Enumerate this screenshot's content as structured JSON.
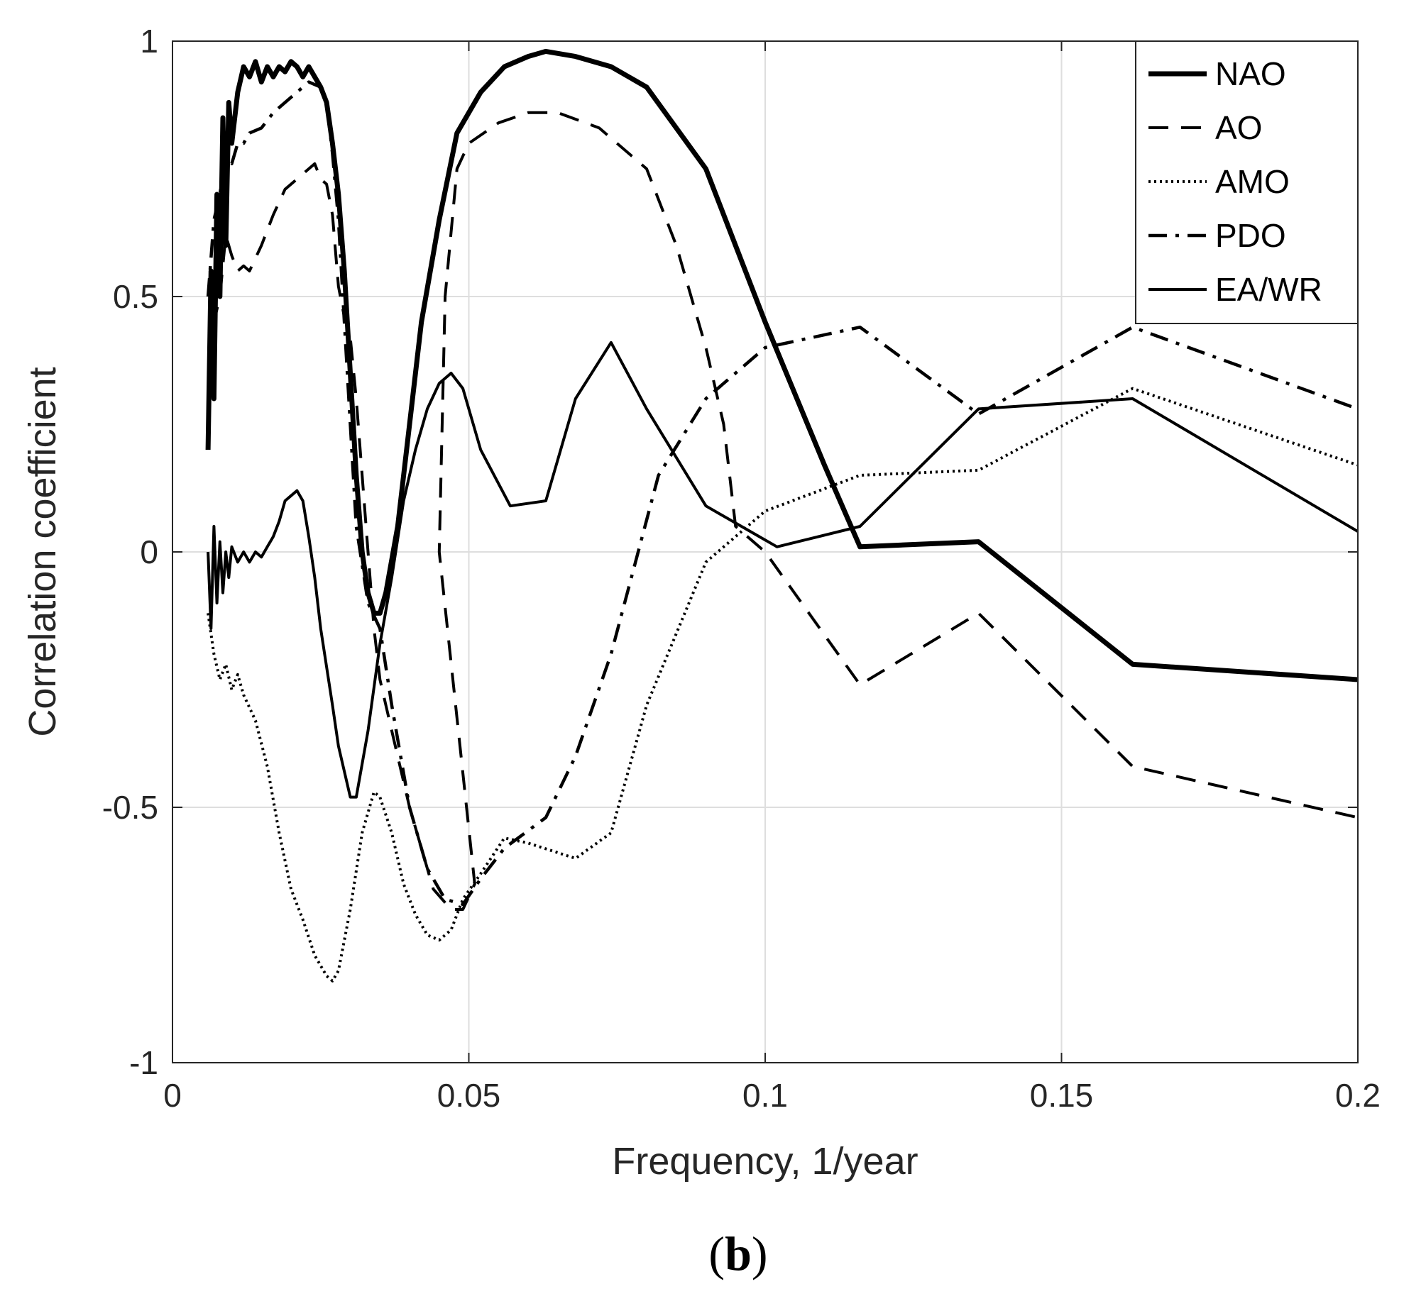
{
  "chart_data": {
    "type": "line",
    "title": "",
    "xlabel": "Frequency, 1/year",
    "ylabel": "Correlation coefficient",
    "panel_label_open": "(",
    "panel_label_letter": "b",
    "panel_label_close": ")",
    "xlim": [
      0,
      0.2
    ],
    "ylim": [
      -1,
      1
    ],
    "grid": true,
    "legend_position": "top-right",
    "xticks": [
      0,
      0.05,
      0.1,
      0.15,
      0.2
    ],
    "xtick_labels": [
      "0",
      "0.05",
      "0.1",
      "0.15",
      "0.2"
    ],
    "yticks": [
      -1,
      -0.5,
      0,
      0.5,
      1
    ],
    "ytick_labels": [
      "-1",
      "-0.5",
      "0",
      "0.5",
      "1"
    ],
    "series": [
      {
        "name": "NAO",
        "style": "solid-thick",
        "color": "#000000",
        "points": [
          [
            0.006,
            0.2
          ],
          [
            0.0065,
            0.55
          ],
          [
            0.007,
            0.3
          ],
          [
            0.0075,
            0.7
          ],
          [
            0.008,
            0.5
          ],
          [
            0.0085,
            0.85
          ],
          [
            0.009,
            0.6
          ],
          [
            0.0095,
            0.88
          ],
          [
            0.01,
            0.8
          ],
          [
            0.011,
            0.9
          ],
          [
            0.012,
            0.95
          ],
          [
            0.013,
            0.93
          ],
          [
            0.014,
            0.96
          ],
          [
            0.015,
            0.92
          ],
          [
            0.016,
            0.95
          ],
          [
            0.017,
            0.93
          ],
          [
            0.018,
            0.95
          ],
          [
            0.019,
            0.94
          ],
          [
            0.02,
            0.96
          ],
          [
            0.021,
            0.95
          ],
          [
            0.022,
            0.93
          ],
          [
            0.023,
            0.95
          ],
          [
            0.024,
            0.93
          ],
          [
            0.025,
            0.91
          ],
          [
            0.026,
            0.88
          ],
          [
            0.027,
            0.8
          ],
          [
            0.028,
            0.7
          ],
          [
            0.029,
            0.55
          ],
          [
            0.03,
            0.35
          ],
          [
            0.031,
            0.15
          ],
          [
            0.032,
            0.0
          ],
          [
            0.033,
            -0.08
          ],
          [
            0.034,
            -0.12
          ],
          [
            0.035,
            -0.12
          ],
          [
            0.036,
            -0.08
          ],
          [
            0.038,
            0.05
          ],
          [
            0.04,
            0.25
          ],
          [
            0.042,
            0.45
          ],
          [
            0.045,
            0.65
          ],
          [
            0.048,
            0.82
          ],
          [
            0.052,
            0.9
          ],
          [
            0.056,
            0.95
          ],
          [
            0.06,
            0.97
          ],
          [
            0.063,
            0.98
          ],
          [
            0.068,
            0.97
          ],
          [
            0.074,
            0.95
          ],
          [
            0.08,
            0.91
          ],
          [
            0.09,
            0.75
          ],
          [
            0.1,
            0.45
          ],
          [
            0.11,
            0.17
          ],
          [
            0.116,
            0.01
          ],
          [
            0.136,
            0.02
          ],
          [
            0.162,
            -0.22
          ],
          [
            0.2,
            -0.25
          ]
        ]
      },
      {
        "name": "AO",
        "style": "dashed",
        "color": "#000000",
        "points": [
          [
            0.006,
            0.25
          ],
          [
            0.007,
            0.45
          ],
          [
            0.008,
            0.5
          ],
          [
            0.009,
            0.62
          ],
          [
            0.01,
            0.58
          ],
          [
            0.011,
            0.55
          ],
          [
            0.012,
            0.56
          ],
          [
            0.013,
            0.55
          ],
          [
            0.015,
            0.6
          ],
          [
            0.017,
            0.66
          ],
          [
            0.019,
            0.71
          ],
          [
            0.021,
            0.73
          ],
          [
            0.023,
            0.75
          ],
          [
            0.024,
            0.76
          ],
          [
            0.025,
            0.73
          ],
          [
            0.026,
            0.72
          ],
          [
            0.027,
            0.66
          ],
          [
            0.028,
            0.52
          ],
          [
            0.029,
            0.46
          ],
          [
            0.03,
            0.42
          ],
          [
            0.031,
            0.3
          ],
          [
            0.032,
            0.15
          ],
          [
            0.033,
            0.0
          ],
          [
            0.034,
            -0.15
          ],
          [
            0.035,
            -0.25
          ],
          [
            0.037,
            -0.35
          ],
          [
            0.04,
            -0.5
          ],
          [
            0.044,
            -0.66
          ],
          [
            0.047,
            -0.7
          ],
          [
            0.049,
            -0.7
          ],
          [
            0.051,
            -0.65
          ],
          [
            0.045,
            0.0
          ],
          [
            0.046,
            0.5
          ],
          [
            0.048,
            0.75
          ],
          [
            0.05,
            0.8
          ],
          [
            0.055,
            0.84
          ],
          [
            0.06,
            0.86
          ],
          [
            0.065,
            0.86
          ],
          [
            0.072,
            0.83
          ],
          [
            0.08,
            0.75
          ],
          [
            0.085,
            0.6
          ],
          [
            0.09,
            0.4
          ],
          [
            0.093,
            0.25
          ],
          [
            0.095,
            0.05
          ],
          [
            0.1,
            0.0
          ],
          [
            0.116,
            -0.26
          ],
          [
            0.136,
            -0.12
          ],
          [
            0.162,
            -0.42
          ],
          [
            0.2,
            -0.52
          ]
        ]
      },
      {
        "name": "AMO",
        "style": "dotted",
        "color": "#000000",
        "points": [
          [
            0.006,
            -0.12
          ],
          [
            0.007,
            -0.2
          ],
          [
            0.008,
            -0.25
          ],
          [
            0.009,
            -0.22
          ],
          [
            0.01,
            -0.27
          ],
          [
            0.011,
            -0.24
          ],
          [
            0.012,
            -0.28
          ],
          [
            0.014,
            -0.33
          ],
          [
            0.016,
            -0.42
          ],
          [
            0.018,
            -0.55
          ],
          [
            0.02,
            -0.66
          ],
          [
            0.022,
            -0.72
          ],
          [
            0.024,
            -0.79
          ],
          [
            0.026,
            -0.83
          ],
          [
            0.027,
            -0.84
          ],
          [
            0.028,
            -0.82
          ],
          [
            0.03,
            -0.7
          ],
          [
            0.032,
            -0.55
          ],
          [
            0.034,
            -0.47
          ],
          [
            0.035,
            -0.48
          ],
          [
            0.037,
            -0.55
          ],
          [
            0.039,
            -0.65
          ],
          [
            0.041,
            -0.71
          ],
          [
            0.043,
            -0.75
          ],
          [
            0.045,
            -0.76
          ],
          [
            0.047,
            -0.74
          ],
          [
            0.049,
            -0.68
          ],
          [
            0.052,
            -0.63
          ],
          [
            0.056,
            -0.56
          ],
          [
            0.06,
            -0.57
          ],
          [
            0.068,
            -0.6
          ],
          [
            0.074,
            -0.55
          ],
          [
            0.08,
            -0.3
          ],
          [
            0.09,
            -0.02
          ],
          [
            0.1,
            0.08
          ],
          [
            0.116,
            0.15
          ],
          [
            0.136,
            0.16
          ],
          [
            0.162,
            0.32
          ],
          [
            0.2,
            0.17
          ]
        ]
      },
      {
        "name": "PDO",
        "style": "dashdot",
        "color": "#000000",
        "points": [
          [
            0.006,
            0.5
          ],
          [
            0.007,
            0.65
          ],
          [
            0.008,
            0.7
          ],
          [
            0.009,
            0.78
          ],
          [
            0.01,
            0.76
          ],
          [
            0.011,
            0.8
          ],
          [
            0.012,
            0.8
          ],
          [
            0.013,
            0.82
          ],
          [
            0.015,
            0.83
          ],
          [
            0.017,
            0.86
          ],
          [
            0.019,
            0.88
          ],
          [
            0.021,
            0.9
          ],
          [
            0.023,
            0.92
          ],
          [
            0.025,
            0.91
          ],
          [
            0.026,
            0.88
          ],
          [
            0.027,
            0.78
          ],
          [
            0.028,
            0.65
          ],
          [
            0.029,
            0.45
          ],
          [
            0.03,
            0.25
          ],
          [
            0.031,
            0.05
          ],
          [
            0.033,
            -0.1
          ],
          [
            0.035,
            -0.15
          ],
          [
            0.037,
            -0.3
          ],
          [
            0.04,
            -0.5
          ],
          [
            0.043,
            -0.62
          ],
          [
            0.046,
            -0.68
          ],
          [
            0.049,
            -0.69
          ],
          [
            0.052,
            -0.64
          ],
          [
            0.056,
            -0.58
          ],
          [
            0.063,
            -0.52
          ],
          [
            0.068,
            -0.4
          ],
          [
            0.074,
            -0.2
          ],
          [
            0.082,
            0.15
          ],
          [
            0.09,
            0.3
          ],
          [
            0.1,
            0.4
          ],
          [
            0.116,
            0.44
          ],
          [
            0.136,
            0.27
          ],
          [
            0.162,
            0.44
          ],
          [
            0.2,
            0.28
          ]
        ]
      },
      {
        "name": "EA/WR",
        "style": "solid-thin",
        "color": "#000000",
        "points": [
          [
            0.006,
            0.0
          ],
          [
            0.0065,
            -0.15
          ],
          [
            0.007,
            0.05
          ],
          [
            0.0075,
            -0.1
          ],
          [
            0.008,
            0.02
          ],
          [
            0.0085,
            -0.08
          ],
          [
            0.009,
            0.0
          ],
          [
            0.0095,
            -0.05
          ],
          [
            0.01,
            0.01
          ],
          [
            0.011,
            -0.02
          ],
          [
            0.012,
            0.0
          ],
          [
            0.013,
            -0.02
          ],
          [
            0.014,
            0.0
          ],
          [
            0.015,
            -0.01
          ],
          [
            0.016,
            0.01
          ],
          [
            0.017,
            0.03
          ],
          [
            0.018,
            0.06
          ],
          [
            0.019,
            0.1
          ],
          [
            0.02,
            0.11
          ],
          [
            0.021,
            0.12
          ],
          [
            0.022,
            0.1
          ],
          [
            0.023,
            0.03
          ],
          [
            0.024,
            -0.05
          ],
          [
            0.025,
            -0.15
          ],
          [
            0.027,
            -0.3
          ],
          [
            0.028,
            -0.38
          ],
          [
            0.03,
            -0.48
          ],
          [
            0.031,
            -0.48
          ],
          [
            0.033,
            -0.35
          ],
          [
            0.035,
            -0.18
          ],
          [
            0.037,
            -0.05
          ],
          [
            0.039,
            0.1
          ],
          [
            0.041,
            0.2
          ],
          [
            0.043,
            0.28
          ],
          [
            0.045,
            0.33
          ],
          [
            0.047,
            0.35
          ],
          [
            0.049,
            0.32
          ],
          [
            0.052,
            0.2
          ],
          [
            0.057,
            0.09
          ],
          [
            0.063,
            0.1
          ],
          [
            0.068,
            0.3
          ],
          [
            0.074,
            0.41
          ],
          [
            0.08,
            0.28
          ],
          [
            0.09,
            0.09
          ],
          [
            0.102,
            0.01
          ],
          [
            0.116,
            0.05
          ],
          [
            0.136,
            0.28
          ],
          [
            0.162,
            0.3
          ],
          [
            0.2,
            0.04
          ]
        ]
      }
    ]
  }
}
